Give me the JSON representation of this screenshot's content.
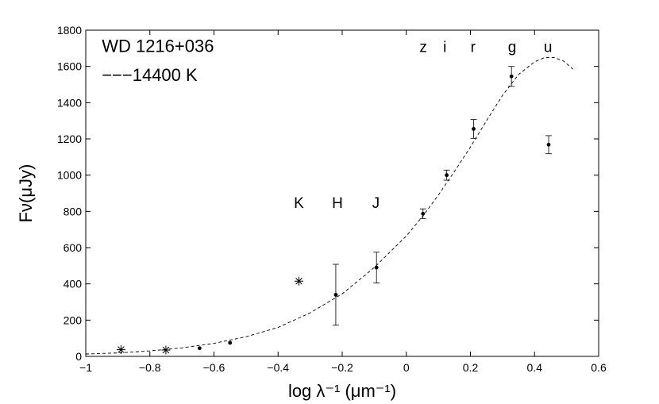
{
  "chart_data": {
    "type": "scatter",
    "xlabel": "log λ⁻¹ (μm⁻¹)",
    "ylabel": "Fν(μJy)",
    "xlim": [
      -1,
      0.6
    ],
    "ylim": [
      0,
      1800
    ],
    "xticks": [
      -1,
      -0.8,
      -0.6,
      -0.4,
      -0.2,
      0,
      0.2,
      0.4,
      0.6
    ],
    "xtick_labels": [
      "−1",
      "−0.8",
      "−0.6",
      "−0.4",
      "−0.2",
      "0",
      "0.2",
      "0.4",
      "0.6"
    ],
    "yticks": [
      0,
      200,
      400,
      600,
      800,
      1000,
      1200,
      1400,
      1600,
      1800
    ],
    "ytick_labels": [
      "0",
      "200",
      "400",
      "600",
      "800",
      "1000",
      "1200",
      "1400",
      "1600",
      "1800"
    ],
    "grid": false,
    "annotations": [
      {
        "text": "WD 1216+036",
        "x": -0.95,
        "y": 1680
      },
      {
        "text": "−−−14400  K",
        "x": -0.95,
        "y": 1520
      }
    ],
    "band_labels": [
      {
        "text": "K",
        "x": -0.335,
        "y": 820
      },
      {
        "text": "H",
        "x": -0.215,
        "y": 820
      },
      {
        "text": "J",
        "x": -0.095,
        "y": 820
      },
      {
        "text": "z",
        "x": 0.053,
        "y": 1680
      },
      {
        "text": "i",
        "x": 0.12,
        "y": 1680
      },
      {
        "text": "r",
        "x": 0.208,
        "y": 1680
      },
      {
        "text": "g",
        "x": 0.33,
        "y": 1680
      },
      {
        "text": "u",
        "x": 0.442,
        "y": 1680
      }
    ],
    "series": [
      {
        "marker": "dot",
        "points": [
          {
            "x": -0.645,
            "y": 45
          },
          {
            "x": -0.55,
            "y": 75
          },
          {
            "x": -0.22,
            "y": 340,
            "err": 168
          },
          {
            "x": -0.093,
            "y": 490,
            "err": 85
          },
          {
            "x": 0.052,
            "y": 787,
            "err": 27
          },
          {
            "x": 0.126,
            "y": 1000,
            "err": 28
          },
          {
            "x": 0.21,
            "y": 1255,
            "err": 52
          },
          {
            "x": 0.328,
            "y": 1545,
            "err": 55
          },
          {
            "x": 0.444,
            "y": 1168,
            "err": 50
          }
        ]
      },
      {
        "marker": "asterisk",
        "points": [
          {
            "x": -0.89,
            "y": 37
          },
          {
            "x": -0.75,
            "y": 35
          },
          {
            "x": -0.335,
            "y": 415
          }
        ]
      },
      {
        "name": "14400 K",
        "marker": "dashed-line",
        "points": [
          {
            "x": -1.0,
            "y": 13
          },
          {
            "x": -0.9,
            "y": 19
          },
          {
            "x": -0.8,
            "y": 30
          },
          {
            "x": -0.7,
            "y": 47
          },
          {
            "x": -0.6,
            "y": 72
          },
          {
            "x": -0.5,
            "y": 108
          },
          {
            "x": -0.4,
            "y": 160
          },
          {
            "x": -0.3,
            "y": 240
          },
          {
            "x": -0.2,
            "y": 345
          },
          {
            "x": -0.1,
            "y": 490
          },
          {
            "x": 0.0,
            "y": 665
          },
          {
            "x": 0.05,
            "y": 770
          },
          {
            "x": 0.1,
            "y": 890
          },
          {
            "x": 0.15,
            "y": 1020
          },
          {
            "x": 0.2,
            "y": 1155
          },
          {
            "x": 0.25,
            "y": 1300
          },
          {
            "x": 0.3,
            "y": 1440
          },
          {
            "x": 0.35,
            "y": 1555
          },
          {
            "x": 0.4,
            "y": 1625
          },
          {
            "x": 0.43,
            "y": 1648
          },
          {
            "x": 0.46,
            "y": 1650
          },
          {
            "x": 0.49,
            "y": 1630
          },
          {
            "x": 0.52,
            "y": 1585
          }
        ]
      }
    ]
  }
}
